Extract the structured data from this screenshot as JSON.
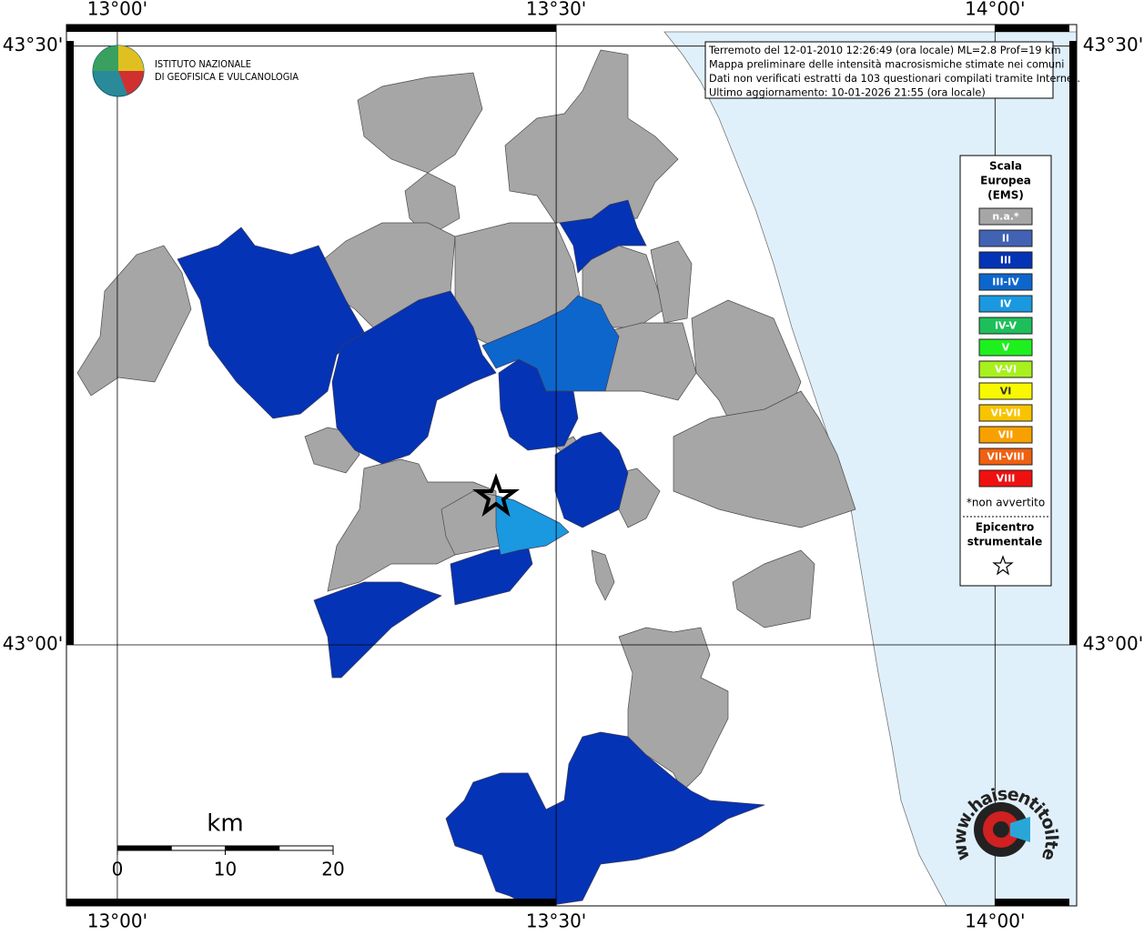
{
  "map": {
    "lon_range": [
      12.942,
      14.093
    ],
    "lat_range": [
      42.782,
      43.518
    ],
    "lon_ticks": [
      {
        "value": 13,
        "label": "13°00'"
      },
      {
        "value": 13.5,
        "label": "13°30'"
      },
      {
        "value": 14,
        "label": "14°00'"
      }
    ],
    "lat_ticks": [
      {
        "value": 43.5,
        "label": "43°30'"
      },
      {
        "value": 43,
        "label": "43°00'"
      }
    ]
  },
  "logo": {
    "line1": "ISTITUTO NAZIONALE",
    "line2": "DI GEOFISICA E VULCANOLOGIA"
  },
  "info": {
    "lines": [
      "Terremoto del 12-01-2010 12:26:49 (ora locale) ML=2.8 Prof=19 km",
      "Mappa preliminare delle intensità macrosismiche stimate nei comuni",
      "Dati non verificati estratti da 103 questionari compilati tramite Internet.",
      "Ultimo aggiornamento: 10-01-2026 21:55 (ora locale)"
    ]
  },
  "legend": {
    "title": [
      "Scala",
      "Europea",
      "(EMS)"
    ],
    "items": [
      {
        "label": "n.a.*",
        "color": "#a6a6a6"
      },
      {
        "label": "II",
        "color": "#4263b3"
      },
      {
        "label": "III",
        "color": "#0433b5"
      },
      {
        "label": "III-IV",
        "color": "#0d66cc"
      },
      {
        "label": "IV",
        "color": "#1a99e0"
      },
      {
        "label": "IV-V",
        "color": "#1ebf5a"
      },
      {
        "label": "V",
        "color": "#1ef01e"
      },
      {
        "label": "V-VI",
        "color": "#a8f01e"
      },
      {
        "label": "VI",
        "color": "#f8f800"
      },
      {
        "label": "VI-VII",
        "color": "#f8c400"
      },
      {
        "label": "VII",
        "color": "#f8a000"
      },
      {
        "label": "VII-VIII",
        "color": "#f06010"
      },
      {
        "label": "VIII",
        "color": "#f01010"
      }
    ],
    "note": "*non avvertito",
    "epicenter": [
      "Epicentro",
      "strumentale"
    ]
  },
  "scale_bar": {
    "unit": "km",
    "ticks": [
      0,
      10,
      20
    ]
  },
  "watermark": "www.haisentitoilterremoto.it"
}
